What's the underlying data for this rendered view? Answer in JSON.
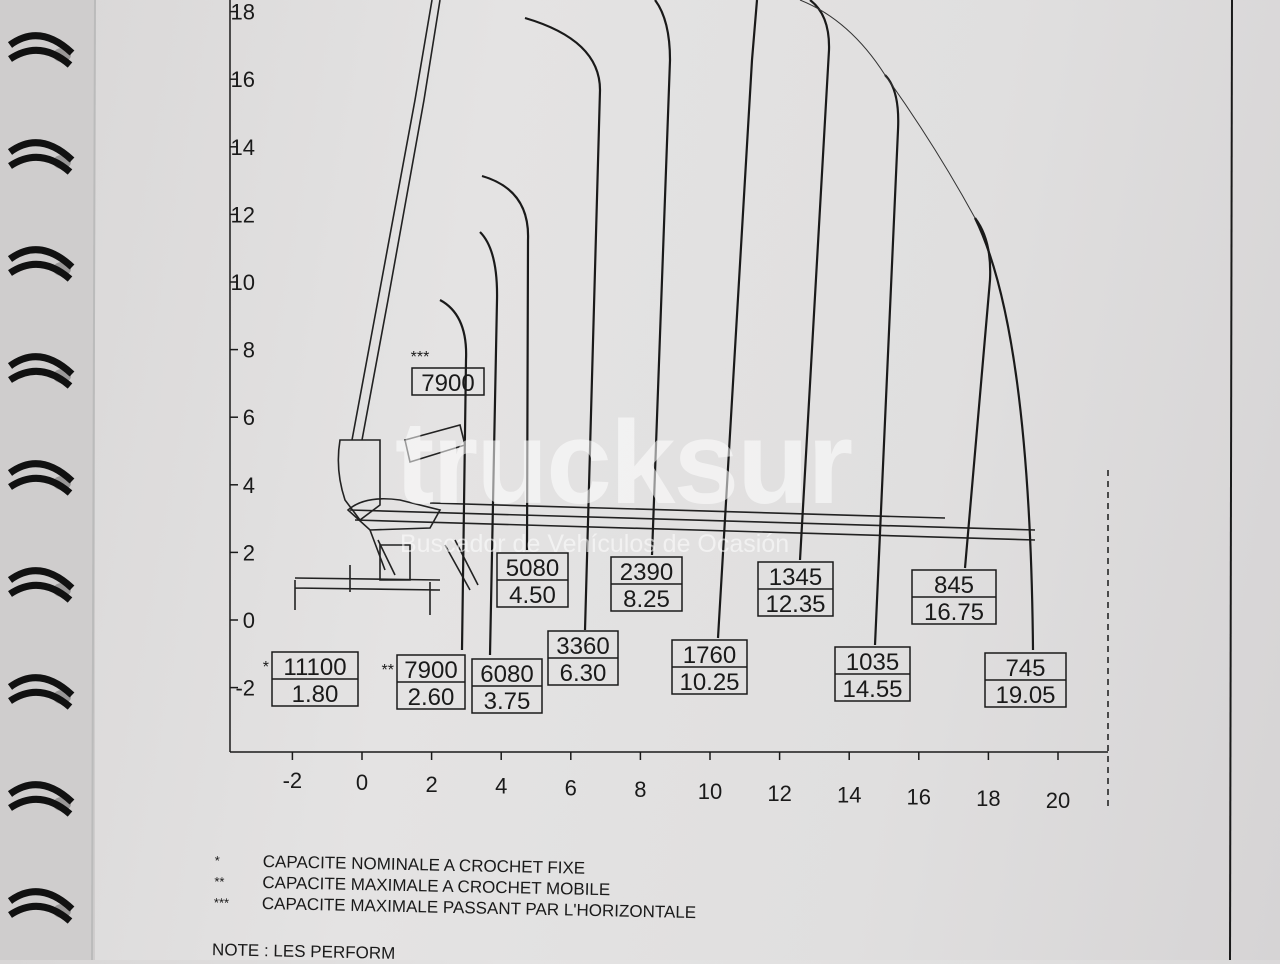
{
  "chart_data": {
    "type": "line",
    "title": "",
    "xlabel": "",
    "ylabel": "",
    "xlim": [
      -2,
      20
    ],
    "ylim": [
      -2,
      18
    ],
    "x_ticks": [
      "-2",
      "0",
      "2",
      "4",
      "6",
      "8",
      "10",
      "12",
      "14",
      "16",
      "18",
      "20"
    ],
    "y_ticks": [
      "18",
      "16",
      "14",
      "12",
      "10",
      "8",
      "6",
      "4",
      "2",
      "0",
      "-2"
    ],
    "grid": false,
    "load_points": [
      {
        "capacity": "11100",
        "radius": "1.80",
        "mark": "*"
      },
      {
        "capacity": "7900",
        "radius": "2.60",
        "mark": "**"
      },
      {
        "capacity": "6080",
        "radius": "3.75",
        "mark": ""
      },
      {
        "capacity": "5080",
        "radius": "4.50",
        "mark": ""
      },
      {
        "capacity": "3360",
        "radius": "6.30",
        "mark": ""
      },
      {
        "capacity": "2390",
        "radius": "8.25",
        "mark": ""
      },
      {
        "capacity": "1760",
        "radius": "10.25",
        "mark": ""
      },
      {
        "capacity": "1345",
        "radius": "12.35",
        "mark": ""
      },
      {
        "capacity": "1035",
        "radius": "14.55",
        "mark": ""
      },
      {
        "capacity": "845",
        "radius": "16.75",
        "mark": ""
      },
      {
        "capacity": "745",
        "radius": "19.05",
        "mark": ""
      }
    ],
    "horizontal_max": {
      "capacity": "7900",
      "mark": "***"
    }
  },
  "legend": [
    {
      "mark": "*",
      "text": "CAPACITE NOMINALE A CROCHET FIXE"
    },
    {
      "mark": "**",
      "text": "CAPACITE MAXIMALE  A CROCHET MOBILE"
    },
    {
      "mark": "***",
      "text": "CAPACITE MAXIMALE PASSANT PAR L'HORIZONTALE"
    }
  ],
  "note": "NOTE : LES PERFORM",
  "watermark": {
    "brand": "trucksur",
    "tagline": "Buscador de Vehículos de Ocasión"
  },
  "colors": {
    "ink": "#1a1a1a",
    "paper": "#e2e1e1",
    "spiral": "#111111"
  }
}
